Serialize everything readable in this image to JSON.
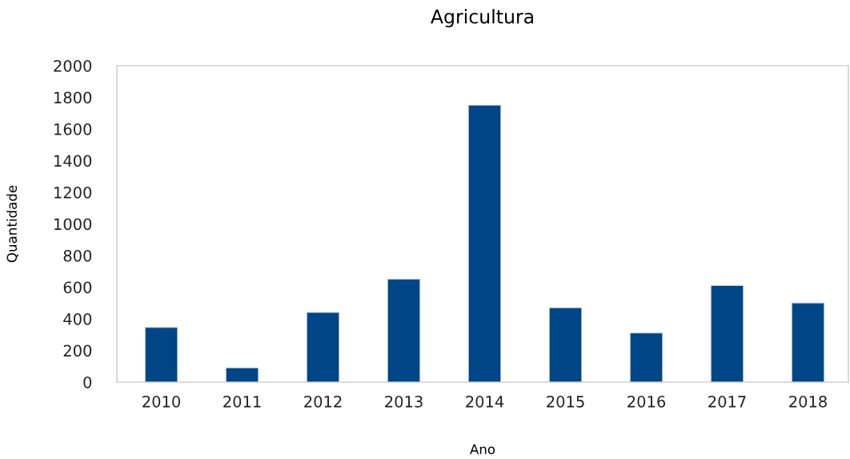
{
  "chart_data": {
    "type": "bar",
    "title": "Agricultura",
    "xlabel": "Ano",
    "ylabel": "Quantidade",
    "categories": [
      "2010",
      "2011",
      "2012",
      "2013",
      "2014",
      "2015",
      "2016",
      "2017",
      "2018"
    ],
    "values": [
      345,
      90,
      440,
      650,
      1750,
      470,
      310,
      610,
      500
    ],
    "color": "#004586",
    "ylim": [
      0,
      2000
    ],
    "yticks": [
      0,
      200,
      400,
      600,
      800,
      1000,
      1200,
      1400,
      1600,
      1800,
      2000
    ],
    "grid": false,
    "legend": false
  }
}
